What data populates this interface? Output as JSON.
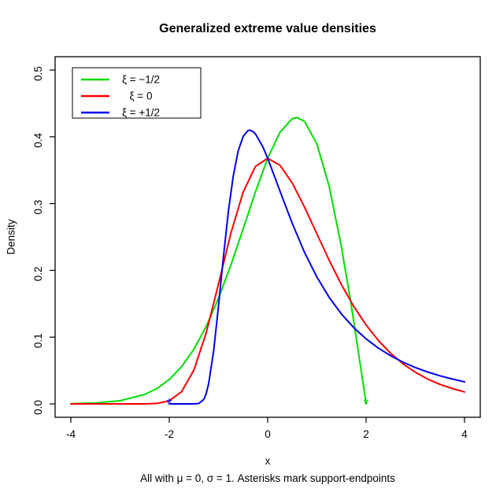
{
  "chart_data": {
    "type": "line",
    "title": "Generalized extreme value densities",
    "xlabel": "x",
    "ylabel": "Density",
    "subtitle": "All with μ = 0, σ = 1. Asterisks mark support-endpoints",
    "xlim": [
      -4,
      4
    ],
    "ylim": [
      0,
      0.5
    ],
    "grid": false,
    "xticks": [
      -4,
      -2,
      0,
      2,
      4
    ],
    "xtick_labels": [
      "-4",
      "-2",
      "0",
      "2",
      "4"
    ],
    "yticks": [
      0.0,
      0.1,
      0.2,
      0.3,
      0.4,
      0.5
    ],
    "ytick_labels": [
      "0.0",
      "0.1",
      "0.2",
      "0.3",
      "0.4",
      "0.5"
    ],
    "legend": {
      "position": "topleft",
      "entries": [
        {
          "label": "ξ = −1/2",
          "color": "#00DF00"
        },
        {
          "label": "ξ = 0",
          "color": "#FF0000"
        },
        {
          "label": "ξ = +1/2",
          "color": "#0000EE"
        }
      ]
    },
    "series": [
      {
        "name": "xi-minus-half",
        "label": "ξ = −1/2",
        "color": "#00DF00",
        "endpoint_marker": {
          "x": 2,
          "y": 0,
          "symbol": "*"
        },
        "points": [
          [
            -4,
            0.0004
          ],
          [
            -3.5,
            0.0014
          ],
          [
            -3,
            0.0048
          ],
          [
            -2.5,
            0.0142
          ],
          [
            -2.25,
            0.0232
          ],
          [
            -2,
            0.0366
          ],
          [
            -1.75,
            0.0557
          ],
          [
            -1.5,
            0.0819
          ],
          [
            -1.25,
            0.116
          ],
          [
            -1,
            0.1581
          ],
          [
            -0.75,
            0.2076
          ],
          [
            -0.5,
            0.262
          ],
          [
            -0.25,
            0.3173
          ],
          [
            0,
            0.3679
          ],
          [
            0.25,
            0.4069
          ],
          [
            0.5,
            0.4273
          ],
          [
            0.6,
            0.4288
          ],
          [
            0.75,
            0.4229
          ],
          [
            1,
            0.3894
          ],
          [
            1.25,
            0.3258
          ],
          [
            1.5,
            0.2349
          ],
          [
            1.7,
            0.1467
          ],
          [
            1.85,
            0.0746
          ],
          [
            1.95,
            0.025
          ],
          [
            2,
            0
          ]
        ]
      },
      {
        "name": "xi-zero",
        "label": "ξ = 0",
        "color": "#FF0000",
        "points": [
          [
            -4,
            0
          ],
          [
            -3,
            0
          ],
          [
            -2.5,
            0.0001
          ],
          [
            -2.25,
            0.0007
          ],
          [
            -2,
            0.0046
          ],
          [
            -1.75,
            0.0182
          ],
          [
            -1.5,
            0.0507
          ],
          [
            -1.25,
            0.1064
          ],
          [
            -1,
            0.1794
          ],
          [
            -0.75,
            0.2549
          ],
          [
            -0.5,
            0.317
          ],
          [
            -0.25,
            0.3556
          ],
          [
            0,
            0.3679
          ],
          [
            0.25,
            0.3574
          ],
          [
            0.5,
            0.3307
          ],
          [
            0.75,
            0.2945
          ],
          [
            1,
            0.2547
          ],
          [
            1.25,
            0.2152
          ],
          [
            1.5,
            0.1785
          ],
          [
            1.75,
            0.146
          ],
          [
            2,
            0.1182
          ],
          [
            2.25,
            0.0949
          ],
          [
            2.5,
            0.0756
          ],
          [
            2.75,
            0.0599
          ],
          [
            3,
            0.0474
          ],
          [
            3.25,
            0.0373
          ],
          [
            3.5,
            0.0293
          ],
          [
            3.75,
            0.023
          ],
          [
            4,
            0.018
          ]
        ]
      },
      {
        "name": "xi-plus-half",
        "label": "ξ = +1/2",
        "color": "#0000EE",
        "endpoint_marker": {
          "x": -2,
          "y": 0,
          "symbol": "*"
        },
        "points": [
          [
            -2,
            0
          ],
          [
            -1.6,
            0
          ],
          [
            -1.5,
            0.0
          ],
          [
            -1.4,
            0.0006
          ],
          [
            -1.3,
            0.0067
          ],
          [
            -1.25,
            0.0154
          ],
          [
            -1.2,
            0.0302
          ],
          [
            -1.1,
            0.0787
          ],
          [
            -1,
            0.1465
          ],
          [
            -0.9,
            0.2203
          ],
          [
            -0.8,
            0.2879
          ],
          [
            -0.7,
            0.3415
          ],
          [
            -0.6,
            0.3789
          ],
          [
            -0.5,
            0.4004
          ],
          [
            -0.4,
            0.4094
          ],
          [
            -0.37,
            0.41
          ],
          [
            -0.3,
            0.4079
          ],
          [
            -0.25,
            0.4044
          ],
          [
            -0.1,
            0.3851
          ],
          [
            0,
            0.3679
          ],
          [
            0.25,
            0.3187
          ],
          [
            0.5,
            0.27
          ],
          [
            0.75,
            0.2267
          ],
          [
            1,
            0.19
          ],
          [
            1.25,
            0.1596
          ],
          [
            1.5,
            0.1346
          ],
          [
            1.75,
            0.1142
          ],
          [
            2,
            0.0974
          ],
          [
            2.25,
            0.0835
          ],
          [
            2.5,
            0.0721
          ],
          [
            2.75,
            0.0625
          ],
          [
            3,
            0.0545
          ],
          [
            3.25,
            0.0478
          ],
          [
            3.5,
            0.0421
          ],
          [
            3.75,
            0.0373
          ],
          [
            4,
            0.0331
          ]
        ]
      }
    ]
  }
}
